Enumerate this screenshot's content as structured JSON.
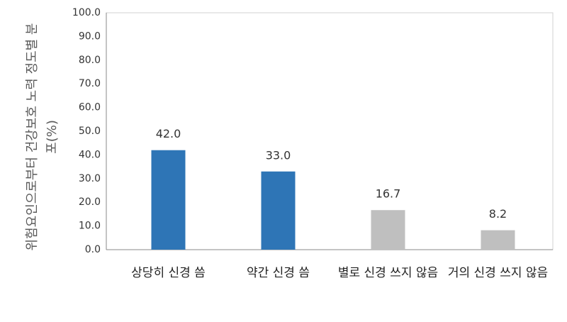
{
  "chart_data": {
    "type": "bar",
    "y_label": "위험요인으로부터 건강보호 노력 정도별 분포(%)",
    "categories": [
      "상당히 신경 씀",
      "약간 신경 씀",
      "별로 신경 쓰지 않음",
      "거의 신경 쓰지 않음"
    ],
    "values": [
      42,
      33,
      16.7,
      8.2
    ],
    "value_labels": [
      "42.0",
      "33.0",
      "16.7",
      "8.2"
    ],
    "colors": [
      "#2e75b6",
      "#2e75b6",
      "#bfbfbf",
      "#bfbfbf"
    ],
    "ylim": [
      0,
      100
    ],
    "yticks": [
      {
        "value": 0,
        "label": "0.0"
      },
      {
        "value": 10,
        "label": "10.0"
      },
      {
        "value": 20,
        "label": "20.0"
      },
      {
        "value": 30,
        "label": "30.0"
      },
      {
        "value": 40,
        "label": "40.0"
      },
      {
        "value": 50,
        "label": "50.0"
      },
      {
        "value": 60,
        "label": "60.0"
      },
      {
        "value": 70,
        "label": "70.0"
      },
      {
        "value": 80,
        "label": "80.0"
      },
      {
        "value": 90,
        "label": "90.0"
      },
      {
        "value": 100,
        "label": "100.0"
      }
    ],
    "grid": false
  }
}
